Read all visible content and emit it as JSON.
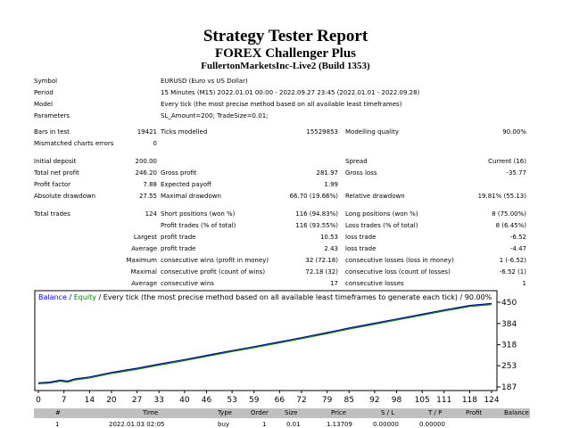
{
  "report": {
    "title": "Strategy Tester Report",
    "subtitle": "FOREX Challenger Plus",
    "server": "FullertonMarketsInc-Live2 (Build 1353)"
  },
  "info": {
    "symbol_label": "Symbol",
    "symbol": "EURUSD (Euro vs US Dollar)",
    "period_label": "Period",
    "period": "15 Minutes (M15) 2022.01.01 00:00 - 2022.09.27 23:45 (2022.01.01 - 2022.09.28)",
    "model_label": "Model",
    "model": "Every tick (the most precise method based on all available least timeframes)",
    "params_label": "Parameters",
    "params": "SL_Amount=200; TradeSize=0.01;",
    "bars_label": "Bars in test",
    "bars": "19421",
    "ticks_label": "Ticks modelled",
    "ticks": "15529853",
    "quality_label": "Modelling quality",
    "quality": "90.00%",
    "mismatch_label": "Mismatched charts errors",
    "mismatch": "0"
  },
  "stats": {
    "deposit_label": "Initial deposit",
    "deposit": "200.00",
    "spread_label": "Spread",
    "spread": "Current (16)",
    "net_label": "Total net profit",
    "net": "246.20",
    "gp_label": "Gross profit",
    "gp": "281.97",
    "gl_label": "Gross loss",
    "gl": "-35.77",
    "pf_label": "Profit factor",
    "pf": "7.88",
    "ep_label": "Expected payoff",
    "ep": "1.99",
    "ad_label": "Absolute drawdown",
    "ad": "27.55",
    "md_label": "Maximal drawdown",
    "md": "66.70 (19.66%)",
    "rd_label": "Relative drawdown",
    "rd": "19.81% (55.13)",
    "tt_label": "Total trades",
    "tt": "124",
    "sp_label": "Short positions (won %)",
    "sp": "116 (94.83%)",
    "lp_label": "Long positions (won %)",
    "lp": "8 (75.00%)",
    "pt_label": "Profit trades (% of total)",
    "pt": "116 (93.55%)",
    "lt_label": "Loss trades (% of total)",
    "lt": "8 (6.45%)",
    "largest": "Largest",
    "average": "Average",
    "maximum": "Maximum",
    "maximal": "Maximal",
    "lpt_label": "profit trade",
    "lpt": "10.53",
    "llt_label": "loss trade",
    "llt": "-6.52",
    "apt_label": "profit trade",
    "apt": "2.43",
    "alt_label": "loss trade",
    "alt": "-4.47",
    "mcw_label": "consecutive wins (profit in money)",
    "mcw": "32 (72.18)",
    "mcl_label": "consecutive losses (loss in money)",
    "mcl": "1 (-6.52)",
    "xcp_label": "consecutive profit (count of wins)",
    "xcp": "72.18 (32)",
    "xcl_label": "consecutive loss (count of losses)",
    "xcl": "-6.52 (1)",
    "acw_label": "consecutive wins",
    "acw": "17",
    "acl_label": "consecutive losses",
    "acl": "1"
  },
  "chart_data": {
    "type": "line",
    "legend": {
      "balance": "Balance",
      "sep": " / ",
      "equity": "Equity",
      "rest": " / Every tick (the most precise method based on all available least timeframes to generate each tick) / 90.00%"
    },
    "colors": {
      "balance": "#00008b",
      "equity": "#008000",
      "legend_balance": "#0000ff"
    },
    "x_ticks": [
      "0",
      "7",
      "14",
      "20",
      "27",
      "33",
      "40",
      "46",
      "53",
      "59",
      "66",
      "72",
      "79",
      "85",
      "92",
      "98",
      "105",
      "111",
      "118",
      "124"
    ],
    "y_ticks": [
      "450",
      "384",
      "318",
      "253",
      "187"
    ],
    "ylim": [
      187,
      450
    ],
    "xlim": [
      0,
      124
    ],
    "grid": false,
    "series": [
      {
        "name": "Balance",
        "x": [
          0,
          3,
          6,
          8,
          10,
          14,
          20,
          27,
          33,
          40,
          46,
          53,
          59,
          66,
          72,
          79,
          85,
          92,
          98,
          105,
          111,
          118,
          124
        ],
        "y": [
          200,
          202,
          208,
          205,
          212,
          218,
          232,
          245,
          258,
          272,
          285,
          300,
          312,
          327,
          340,
          356,
          370,
          385,
          398,
          413,
          426,
          440,
          446
        ]
      }
    ]
  },
  "trades": {
    "headers": [
      "#",
      "Time",
      "Type",
      "Order",
      "Size",
      "Price",
      "S / L",
      "T / P",
      "Profit",
      "Balance"
    ],
    "rows": [
      [
        "1",
        "2022.01.03 02:05",
        "buy",
        "1",
        "0.01",
        "1.13709",
        "0.00000",
        "0.00000",
        "",
        ""
      ]
    ]
  }
}
